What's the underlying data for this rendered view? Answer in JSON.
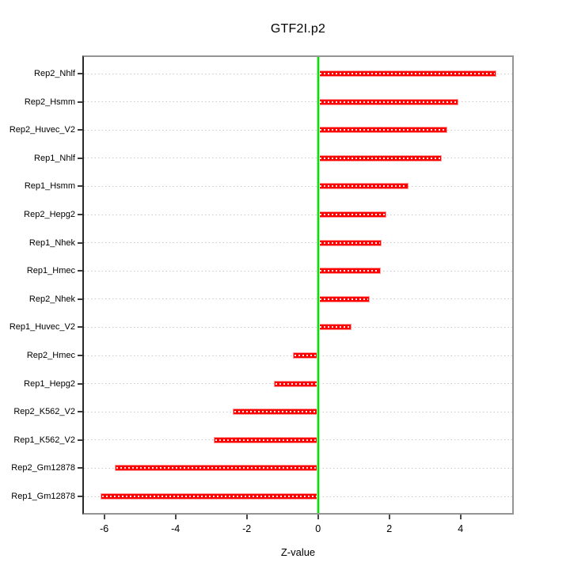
{
  "title": "GTF2I.p2",
  "chart_data": {
    "type": "bar",
    "orientation": "horizontal",
    "title": "GTF2I.p2",
    "xlabel": "Z-value",
    "categories": [
      "Rep2_Nhlf",
      "Rep2_Hsmm",
      "Rep2_Huvec_V2",
      "Rep1_Nhlf",
      "Rep1_Hsmm",
      "Rep2_Hepg2",
      "Rep1_Nhek",
      "Rep1_Hmec",
      "Rep2_Nhek",
      "Rep1_Huvec_V2",
      "Rep2_Hmec",
      "Rep1_Hepg2",
      "Rep2_K562_V2",
      "Rep1_K562_V2",
      "Rep2_Gm12878",
      "Rep1_Gm12878"
    ],
    "values": [
      5.0,
      3.95,
      3.64,
      3.47,
      2.53,
      1.92,
      1.79,
      1.76,
      1.45,
      0.95,
      -0.7,
      -1.23,
      -2.39,
      -2.92,
      -5.7,
      -6.11
    ],
    "x_ticks": [
      -6,
      -4,
      -2,
      0,
      2,
      4
    ],
    "x_tick_labels": [
      "-6",
      "-4",
      "-2",
      "0",
      "2",
      "4"
    ],
    "xlim": [
      -6.57,
      5.45
    ],
    "zero_reference_line": 0,
    "grid": "dotted horizontal line per category",
    "legend": "none",
    "colors": {
      "bar_fill": "#ff0000",
      "bar_border": "#ff9c9c",
      "bar_inner_dots": "#ffffff",
      "zero_line": "#00e300",
      "grid_line": "#c9c9c9",
      "frame": "#949494",
      "axis_line": "#2a2a2a",
      "text": "#000000",
      "background": "#ffffff"
    }
  }
}
